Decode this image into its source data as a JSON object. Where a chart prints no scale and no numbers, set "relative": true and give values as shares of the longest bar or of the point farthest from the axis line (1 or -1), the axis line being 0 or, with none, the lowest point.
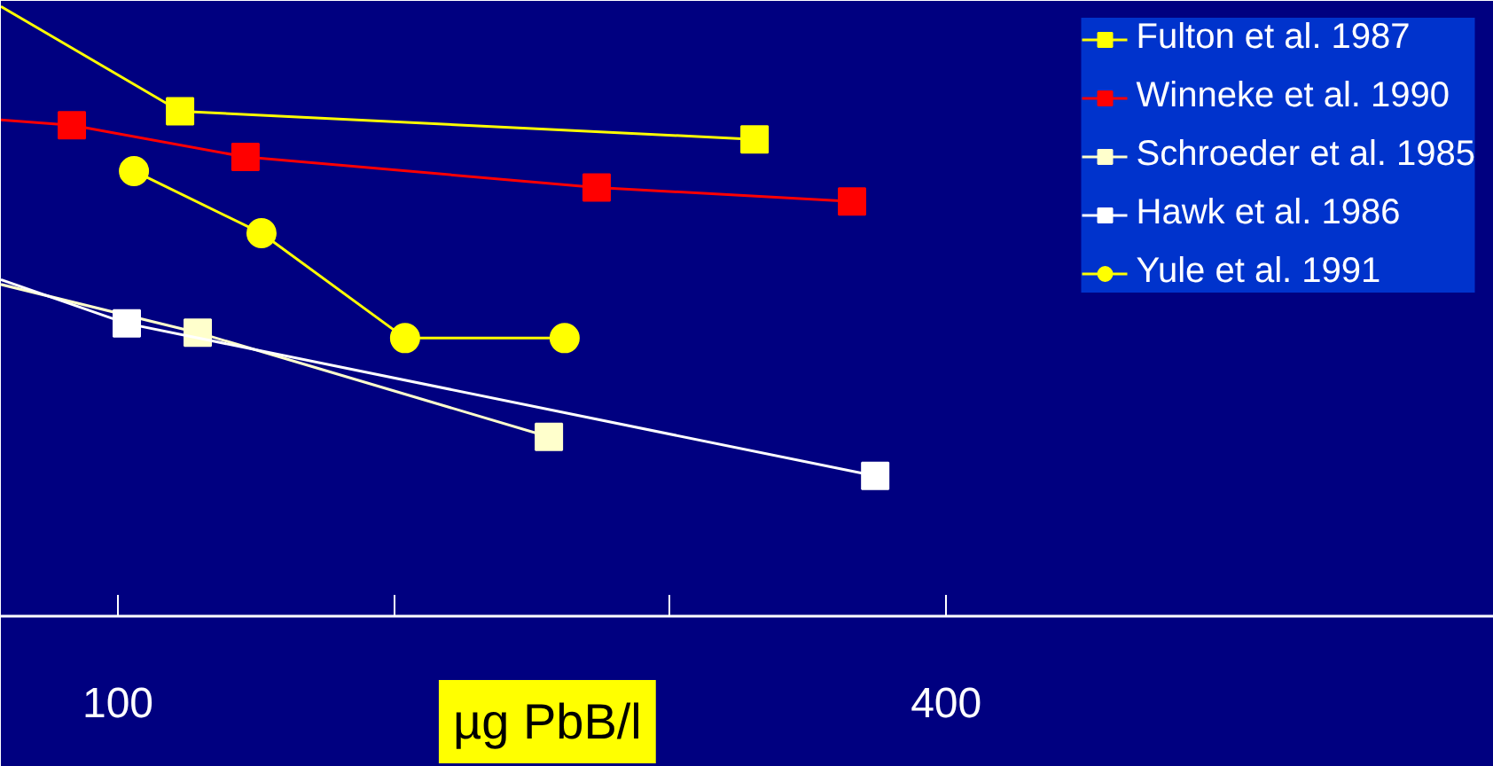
{
  "chart_data": {
    "type": "line",
    "relative": true,
    "xlabel": "µg PbB/l",
    "xlim": [
      57.6,
      598.4
    ],
    "xticks": [
      100,
      {
        "value": 200,
        "label": null
      },
      {
        "value": 300,
        "label": null
      },
      400
    ],
    "grid": false,
    "legend": "top right",
    "series": [
      {
        "name": "Fulton et al. 1987",
        "color": "#ffff00",
        "marker": "square",
        "x": [
          57.6,
          122.5,
          330.6
        ],
        "values": [
          1.0,
          0.828,
          0.782
        ]
      },
      {
        "name": "Winneke et al. 1990",
        "color": "#ff0000",
        "marker": "square",
        "x": [
          57.6,
          83.3,
          146.2,
          273.4,
          365.9
        ],
        "values": [
          0.814,
          0.805,
          0.753,
          0.703,
          0.68
        ]
      },
      {
        "name": "Schroeder et al. 1985",
        "color": "#ffffcc",
        "marker": "square",
        "x": [
          57.6,
          128.9,
          256.1
        ],
        "values": [
          0.544,
          0.465,
          0.294
        ]
      },
      {
        "name": "Hawk et al. 1986",
        "color": "#ffffff",
        "marker": "square",
        "x": [
          57.6,
          103.2,
          374.3
        ],
        "values": [
          0.552,
          0.48,
          0.23
        ]
      },
      {
        "name": "Yule et al. 1991",
        "color": "#ffff00",
        "marker": "circle",
        "x": [
          105.8,
          152.0,
          204.0,
          261.8
        ],
        "values": [
          0.73,
          0.628,
          0.456,
          0.456
        ]
      }
    ]
  }
}
